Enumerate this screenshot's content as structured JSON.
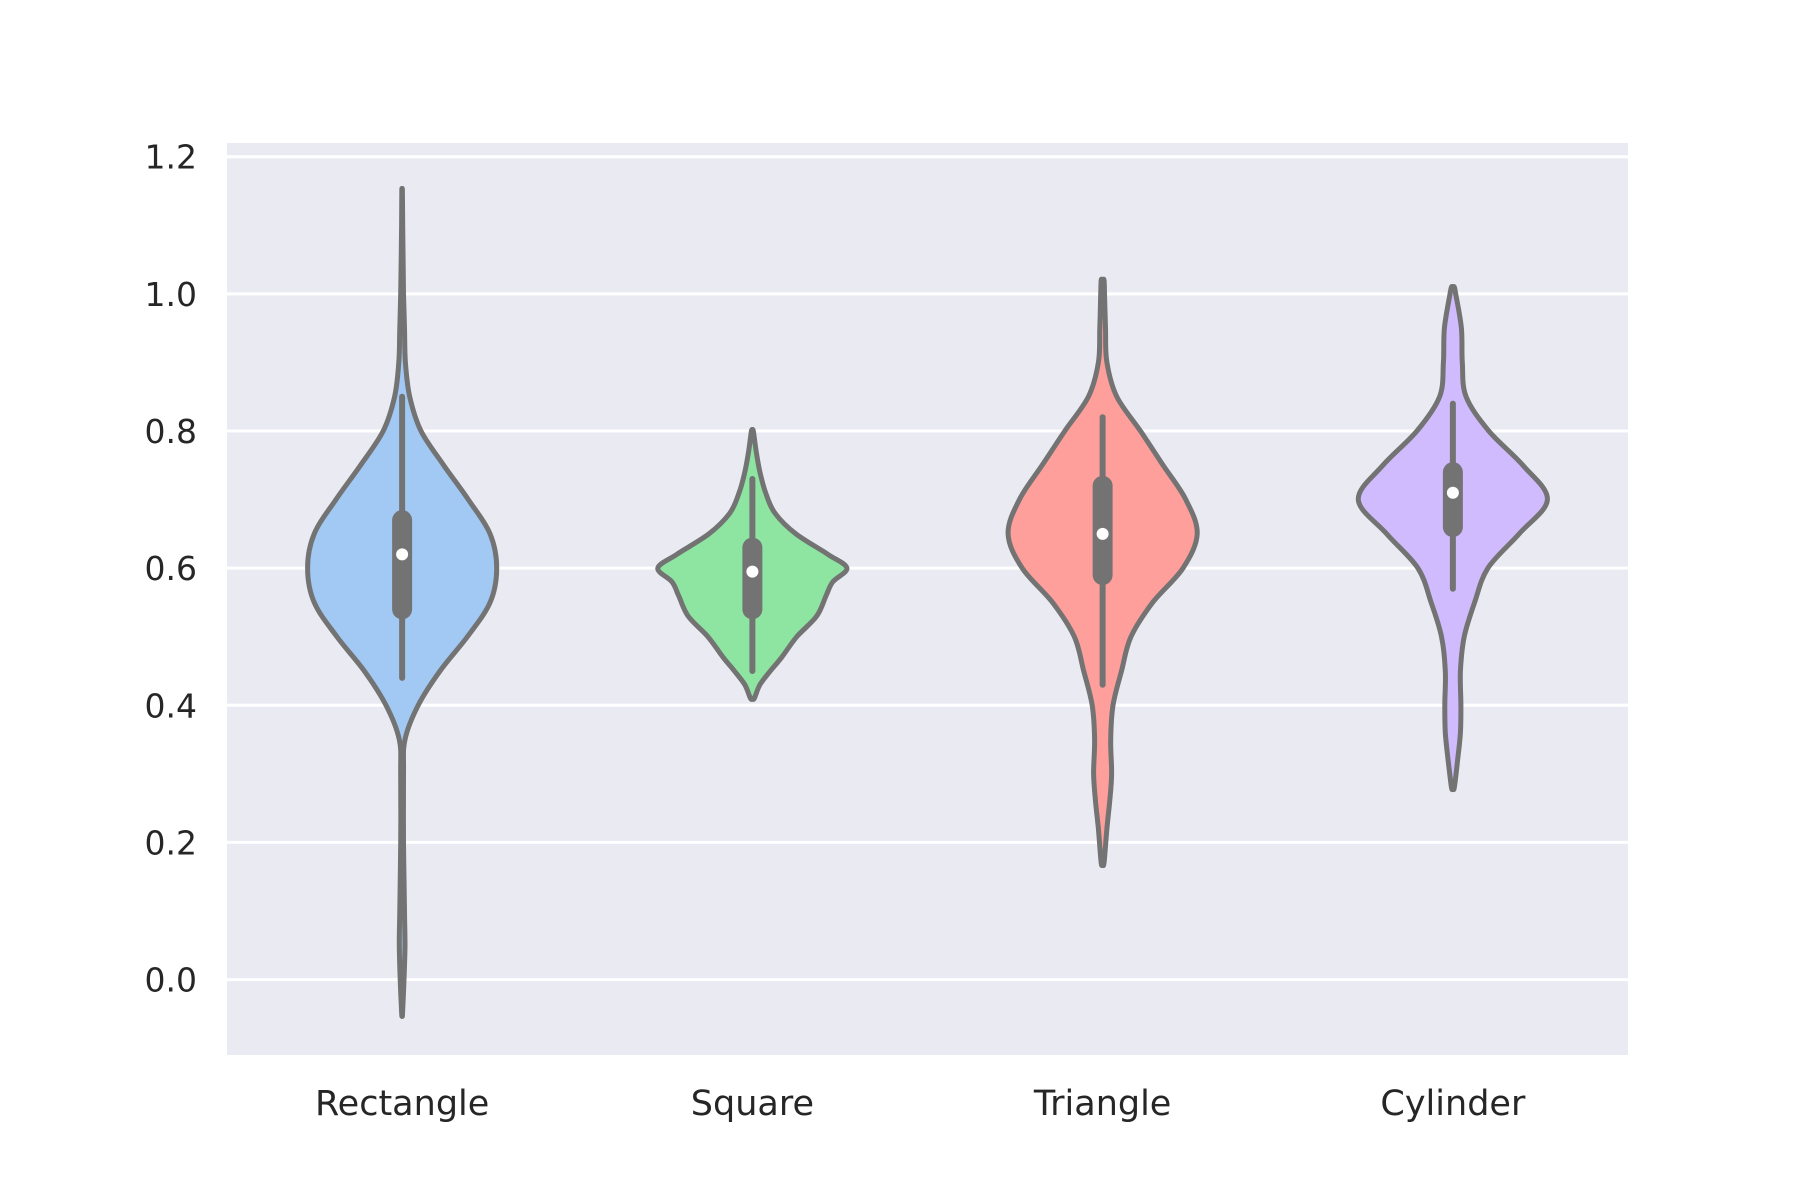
{
  "chart_data": {
    "type": "violin",
    "title": "",
    "xlabel": "",
    "ylabel": "",
    "ylim": [
      -0.11,
      1.22
    ],
    "yticks": [
      0.0,
      0.2,
      0.4,
      0.6,
      0.8,
      1.0,
      1.2
    ],
    "ytick_labels": [
      "0.0",
      "0.2",
      "0.4",
      "0.6",
      "0.8",
      "1.0",
      "1.2"
    ],
    "grid": true,
    "categories": [
      "Rectangle",
      "Square",
      "Triangle",
      "Cylinder"
    ],
    "colors": {
      "background": "#eaeaf2",
      "grid": "#ffffff",
      "outline": "#737373",
      "median": "#ffffff",
      "fills": [
        "#a1c9f4",
        "#8de5a1",
        "#ff9f9b",
        "#d0bbff"
      ]
    },
    "series": [
      {
        "category": "Rectangle",
        "min": -0.05,
        "max": 1.15,
        "whisker_low": 0.44,
        "whisker_high": 0.85,
        "q1": 0.54,
        "q3": 0.67,
        "median": 0.62,
        "density_profile": [
          [
            -0.05,
            0.004
          ],
          [
            0.0,
            0.02
          ],
          [
            0.05,
            0.03
          ],
          [
            0.1,
            0.025
          ],
          [
            0.2,
            0.015
          ],
          [
            0.3,
            0.015
          ],
          [
            0.35,
            0.03
          ],
          [
            0.4,
            0.17
          ],
          [
            0.45,
            0.4
          ],
          [
            0.5,
            0.69
          ],
          [
            0.55,
            0.93
          ],
          [
            0.6,
            1.0
          ],
          [
            0.65,
            0.93
          ],
          [
            0.7,
            0.7
          ],
          [
            0.75,
            0.44
          ],
          [
            0.8,
            0.2
          ],
          [
            0.85,
            0.08
          ],
          [
            0.9,
            0.035
          ],
          [
            0.95,
            0.025
          ],
          [
            1.0,
            0.015
          ],
          [
            1.05,
            0.01
          ],
          [
            1.1,
            0.006
          ],
          [
            1.15,
            0.003
          ]
        ]
      },
      {
        "category": "Square",
        "min": 0.41,
        "max": 0.8,
        "whisker_low": 0.45,
        "whisker_high": 0.73,
        "q1": 0.54,
        "q3": 0.63,
        "median": 0.595,
        "density_profile": [
          [
            0.41,
            0.02
          ],
          [
            0.43,
            0.08
          ],
          [
            0.45,
            0.19
          ],
          [
            0.47,
            0.31
          ],
          [
            0.5,
            0.47
          ],
          [
            0.53,
            0.68
          ],
          [
            0.56,
            0.78
          ],
          [
            0.58,
            0.85
          ],
          [
            0.6,
            1.0
          ],
          [
            0.62,
            0.8
          ],
          [
            0.65,
            0.46
          ],
          [
            0.68,
            0.24
          ],
          [
            0.71,
            0.14
          ],
          [
            0.74,
            0.08
          ],
          [
            0.77,
            0.04
          ],
          [
            0.8,
            0.01
          ]
        ]
      },
      {
        "category": "Triangle",
        "min": 0.17,
        "max": 1.02,
        "whisker_low": 0.43,
        "whisker_high": 0.82,
        "q1": 0.59,
        "q3": 0.72,
        "median": 0.65,
        "density_profile": [
          [
            0.17,
            0.015
          ],
          [
            0.22,
            0.045
          ],
          [
            0.26,
            0.075
          ],
          [
            0.3,
            0.095
          ],
          [
            0.35,
            0.085
          ],
          [
            0.4,
            0.11
          ],
          [
            0.45,
            0.2
          ],
          [
            0.5,
            0.3
          ],
          [
            0.55,
            0.53
          ],
          [
            0.6,
            0.85
          ],
          [
            0.65,
            1.0
          ],
          [
            0.7,
            0.88
          ],
          [
            0.75,
            0.64
          ],
          [
            0.8,
            0.4
          ],
          [
            0.85,
            0.15
          ],
          [
            0.9,
            0.045
          ],
          [
            0.95,
            0.03
          ],
          [
            1.0,
            0.02
          ],
          [
            1.02,
            0.015
          ]
        ]
      },
      {
        "category": "Cylinder",
        "min": 0.28,
        "max": 1.01,
        "whisker_low": 0.57,
        "whisker_high": 0.84,
        "q1": 0.66,
        "q3": 0.74,
        "median": 0.71,
        "density_profile": [
          [
            0.28,
            0.015
          ],
          [
            0.32,
            0.05
          ],
          [
            0.36,
            0.08
          ],
          [
            0.4,
            0.085
          ],
          [
            0.45,
            0.08
          ],
          [
            0.5,
            0.12
          ],
          [
            0.55,
            0.23
          ],
          [
            0.6,
            0.37
          ],
          [
            0.65,
            0.7
          ],
          [
            0.7,
            1.0
          ],
          [
            0.75,
            0.74
          ],
          [
            0.8,
            0.38
          ],
          [
            0.85,
            0.14
          ],
          [
            0.9,
            0.1
          ],
          [
            0.95,
            0.09
          ],
          [
            1.0,
            0.03
          ],
          [
            1.01,
            0.015
          ]
        ]
      }
    ]
  }
}
